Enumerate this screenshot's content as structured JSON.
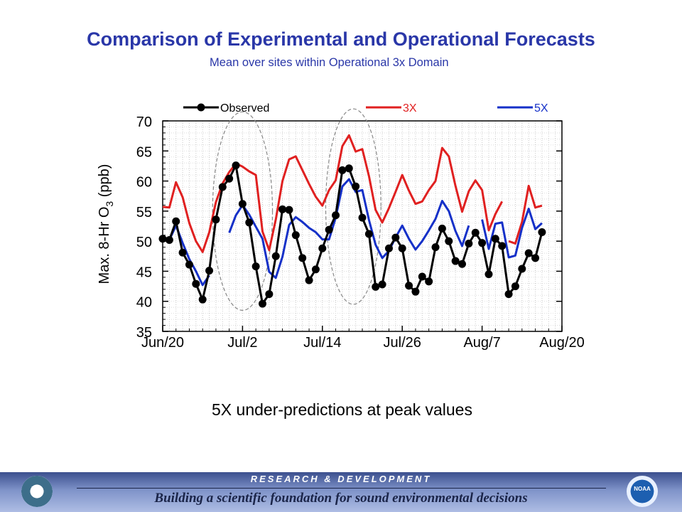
{
  "header": {
    "title": "Comparison of Experimental and Operational Forecasts",
    "subtitle": "Mean over sites within Operational 3x Domain"
  },
  "caption": "5X under-predictions at peak values",
  "footer": {
    "heading": "RESEARCH & DEVELOPMENT",
    "tagline": "Building a scientific foundation for sound environmental decisions",
    "left_logo": "EPA",
    "right_logo": "NOAA"
  },
  "colors": {
    "title": "#2a37a8",
    "observed": "#000000",
    "three_x": "#e02020",
    "five_x": "#1530c8",
    "annotation": "#888888"
  },
  "chart_data": {
    "type": "line",
    "ylabel": "Max. 8-Hr O3 (ppb)",
    "ylim": [
      35,
      70
    ],
    "yticks": [
      35,
      40,
      45,
      50,
      55,
      60,
      65,
      70
    ],
    "x_unit": "day",
    "xlim": [
      "Jun/20",
      "Aug/20"
    ],
    "xticks": [
      {
        "day": 0,
        "label": "Jun/20"
      },
      {
        "day": 12,
        "label": "Jul/2"
      },
      {
        "day": 24,
        "label": "Jul/14"
      },
      {
        "day": 36,
        "label": "Jul/26"
      },
      {
        "day": 48,
        "label": "Aug/7"
      },
      {
        "day": 60,
        "label": "Aug/20"
      }
    ],
    "grid": true,
    "legend_position": "top",
    "series": [
      {
        "name": "Observed",
        "marker": "circle",
        "points": [
          [
            0,
            50.4
          ],
          [
            1,
            50.2
          ],
          [
            2,
            53.3
          ],
          [
            3,
            48.1
          ],
          [
            4,
            46.1
          ],
          [
            5,
            42.9
          ],
          [
            6,
            40.3
          ],
          [
            7,
            45.1
          ],
          [
            8,
            53.6
          ],
          [
            9,
            59.0
          ],
          [
            10,
            60.4
          ],
          [
            11,
            62.6
          ],
          [
            12,
            56.2
          ],
          [
            13,
            53.1
          ],
          [
            14,
            45.8
          ],
          [
            15,
            39.6
          ],
          [
            16,
            41.2
          ],
          [
            17,
            47.5
          ],
          [
            18,
            55.3
          ],
          [
            19,
            55.2
          ],
          [
            20,
            51.0
          ],
          [
            21,
            47.2
          ],
          [
            22,
            43.5
          ],
          [
            23,
            45.3
          ],
          [
            24,
            48.8
          ],
          [
            25,
            51.9
          ],
          [
            26,
            54.3
          ],
          [
            27,
            61.8
          ],
          [
            28,
            62.1
          ],
          [
            29,
            59.1
          ],
          [
            30,
            53.9
          ],
          [
            31,
            51.2
          ],
          [
            32,
            42.4
          ],
          [
            33,
            42.8
          ],
          [
            34,
            48.8
          ],
          [
            35,
            50.6
          ],
          [
            36,
            48.8
          ],
          [
            37,
            42.6
          ],
          [
            38,
            41.6
          ],
          [
            39,
            44.1
          ],
          [
            40,
            43.3
          ],
          [
            41,
            49.0
          ],
          [
            42,
            52.1
          ],
          [
            43,
            50.0
          ],
          [
            44,
            46.7
          ],
          [
            45,
            46.2
          ],
          [
            46,
            49.6
          ],
          [
            47,
            51.4
          ],
          [
            48,
            49.7
          ],
          [
            49,
            44.5
          ],
          [
            50,
            50.4
          ],
          [
            51,
            49.2
          ],
          [
            52,
            41.2
          ],
          [
            53,
            42.5
          ],
          [
            54,
            45.4
          ],
          [
            55,
            48.0
          ],
          [
            56,
            47.2
          ],
          [
            57,
            51.5
          ]
        ]
      },
      {
        "name": "3X",
        "segments": [
          [
            [
              0,
              55.7
            ],
            [
              1,
              55.6
            ],
            [
              2,
              59.8
            ],
            [
              3,
              57.3
            ],
            [
              4,
              53.0
            ],
            [
              5,
              50.0
            ],
            [
              6,
              48.2
            ],
            [
              7,
              51.5
            ],
            [
              8,
              56.5
            ],
            [
              9,
              59.6
            ],
            [
              10,
              61.5
            ],
            [
              11,
              62.9
            ],
            [
              12,
              62.4
            ],
            [
              13,
              61.6
            ],
            [
              14,
              61.0
            ],
            [
              15,
              51.6
            ],
            [
              16,
              48.5
            ],
            [
              17,
              53.6
            ],
            [
              18,
              60.0
            ],
            [
              19,
              63.6
            ],
            [
              20,
              64.1
            ],
            [
              21,
              61.8
            ],
            [
              22,
              59.5
            ],
            [
              23,
              57.4
            ],
            [
              24,
              55.9
            ],
            [
              25,
              58.5
            ],
            [
              26,
              60.1
            ],
            [
              27,
              65.8
            ],
            [
              28,
              67.6
            ],
            [
              29,
              64.9
            ],
            [
              30,
              65.3
            ],
            [
              31,
              60.8
            ],
            [
              32,
              55.2
            ],
            [
              33,
              53.1
            ],
            [
              34,
              55.5
            ],
            [
              35,
              58.2
            ],
            [
              36,
              61.0
            ],
            [
              37,
              58.4
            ],
            [
              38,
              56.2
            ],
            [
              39,
              56.6
            ],
            [
              40,
              58.5
            ],
            [
              41,
              60.0
            ],
            [
              42,
              65.5
            ],
            [
              43,
              64.1
            ],
            [
              44,
              59.2
            ],
            [
              45,
              54.9
            ],
            [
              46,
              58.3
            ],
            [
              47,
              60.1
            ],
            [
              48,
              58.5
            ],
            [
              49,
              51.8
            ],
            [
              50,
              54.5
            ],
            [
              51,
              56.6
            ]
          ],
          [
            [
              52,
              50.0
            ],
            [
              53,
              49.6
            ],
            [
              54,
              53.2
            ],
            [
              55,
              59.2
            ],
            [
              56,
              55.6
            ],
            [
              57,
              55.9
            ]
          ]
        ]
      },
      {
        "name": "5X",
        "segments": [
          [
            [
              0,
              50.4
            ],
            [
              1,
              50.2
            ],
            [
              2,
              52.6
            ],
            [
              3,
              49.7
            ],
            [
              4,
              47.0
            ],
            [
              5,
              45.0
            ],
            [
              6,
              42.7
            ],
            [
              7,
              44.3
            ]
          ],
          [
            [
              10,
              51.4
            ],
            [
              11,
              54.3
            ],
            [
              12,
              56.0
            ],
            [
              13,
              54.4
            ],
            [
              14,
              52.4
            ],
            [
              15,
              50.4
            ],
            [
              16,
              44.9
            ],
            [
              17,
              43.9
            ],
            [
              18,
              47.4
            ],
            [
              19,
              52.7
            ],
            [
              20,
              54.0
            ],
            [
              21,
              53.2
            ],
            [
              22,
              52.2
            ],
            [
              23,
              51.5
            ],
            [
              24,
              50.3
            ],
            [
              25,
              50.3
            ],
            [
              26,
              53.9
            ],
            [
              27,
              59.1
            ],
            [
              28,
              60.3
            ],
            [
              29,
              58.2
            ],
            [
              30,
              58.5
            ],
            [
              31,
              53.5
            ],
            [
              32,
              49.4
            ],
            [
              33,
              47.2
            ],
            [
              34,
              48.4
            ],
            [
              35,
              50.6
            ],
            [
              36,
              52.6
            ],
            [
              37,
              50.4
            ],
            [
              38,
              48.6
            ],
            [
              39,
              50.0
            ],
            [
              40,
              51.8
            ],
            [
              41,
              53.7
            ],
            [
              42,
              56.7
            ],
            [
              43,
              55.0
            ],
            [
              44,
              51.7
            ],
            [
              45,
              49.2
            ],
            [
              46,
              52.6
            ]
          ],
          [
            [
              48,
              53.6
            ],
            [
              49,
              48.7
            ],
            [
              50,
              52.9
            ],
            [
              51,
              53.1
            ],
            [
              52,
              47.3
            ],
            [
              53,
              47.6
            ],
            [
              54,
              52.2
            ],
            [
              55,
              55.4
            ],
            [
              56,
              52.0
            ],
            [
              57,
              53.0
            ]
          ]
        ]
      }
    ],
    "annotations": [
      {
        "type": "ellipse",
        "x_range": [
          7.5,
          16.5
        ],
        "y_range": [
          38.5,
          71.5
        ],
        "style": "dashed"
      },
      {
        "type": "ellipse",
        "x_range": [
          24.5,
          32.8
        ],
        "y_range": [
          39.5,
          72.0
        ],
        "style": "dashed"
      }
    ]
  }
}
